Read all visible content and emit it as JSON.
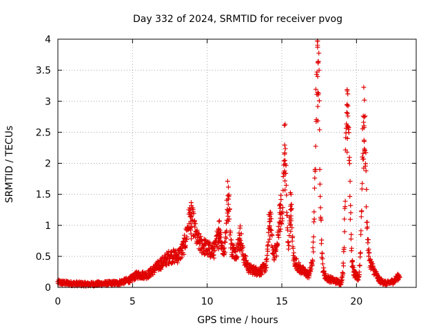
{
  "chart_data": {
    "type": "scatter",
    "title": "Day 332 of 2024, SRMTID for receiver pvog",
    "xlabel": "GPS time / hours",
    "ylabel": "SRMTID / TECUs",
    "xlim": [
      0,
      24
    ],
    "ylim": [
      0,
      4
    ],
    "xticks": [
      0,
      5,
      10,
      15,
      20
    ],
    "yticks": [
      0,
      0.5,
      1,
      1.5,
      2,
      2.5,
      3,
      3.5,
      4
    ],
    "xtick_labels": [
      "0",
      "5",
      "10",
      "15",
      "20"
    ],
    "ytick_labels": [
      "0",
      "0.5",
      "1",
      "1.5",
      "2",
      "2.5",
      "3",
      "3.5",
      "4"
    ],
    "grid": true,
    "marker": "+",
    "color": "#e00000",
    "x_range_observed": [
      0,
      22.9
    ],
    "trend": [
      [
        0,
        0.08
      ],
      [
        1,
        0.06
      ],
      [
        2,
        0.05
      ],
      [
        3,
        0.06
      ],
      [
        4,
        0.07
      ],
      [
        4.8,
        0.12
      ],
      [
        5.3,
        0.2
      ],
      [
        6,
        0.2
      ],
      [
        6.5,
        0.3
      ],
      [
        7,
        0.4
      ],
      [
        7.5,
        0.5
      ],
      [
        8,
        0.5
      ],
      [
        8.8,
        0.7
      ],
      [
        9.5,
        0.7
      ],
      [
        10.2,
        0.6
      ],
      [
        11,
        0.55
      ],
      [
        11.5,
        0.6
      ],
      [
        12.3,
        0.55
      ],
      [
        12.8,
        0.3
      ],
      [
        13.5,
        0.25
      ],
      [
        14,
        0.35
      ],
      [
        14.5,
        0.55
      ],
      [
        15,
        0.7
      ],
      [
        15.8,
        0.45
      ],
      [
        16.2,
        0.3
      ],
      [
        16.8,
        0.2
      ],
      [
        17.2,
        0.45
      ],
      [
        18,
        0.15
      ],
      [
        19,
        0.07
      ],
      [
        19.6,
        0.3
      ],
      [
        20.2,
        0.1
      ],
      [
        20.8,
        0.45
      ],
      [
        21.5,
        0.12
      ],
      [
        22,
        0.06
      ],
      [
        22.5,
        0.1
      ],
      [
        22.9,
        0.2
      ]
    ],
    "peaks": [
      {
        "x": 8.9,
        "y": 1.15,
        "w": 0.35
      },
      {
        "x": 10.8,
        "y": 0.95,
        "w": 0.2
      },
      {
        "x": 11.4,
        "y": 1.53,
        "w": 0.15
      },
      {
        "x": 12.2,
        "y": 0.85,
        "w": 0.15
      },
      {
        "x": 14.2,
        "y": 1.15,
        "w": 0.15
      },
      {
        "x": 14.9,
        "y": 1.3,
        "w": 0.15
      },
      {
        "x": 15.2,
        "y": 2.3,
        "w": 0.15
      },
      {
        "x": 15.6,
        "y": 1.35,
        "w": 0.12
      },
      {
        "x": 17.4,
        "y": 3.88,
        "w": 0.2
      },
      {
        "x": 19.4,
        "y": 3.18,
        "w": 0.2
      },
      {
        "x": 20.5,
        "y": 2.75,
        "w": 0.2
      }
    ]
  }
}
